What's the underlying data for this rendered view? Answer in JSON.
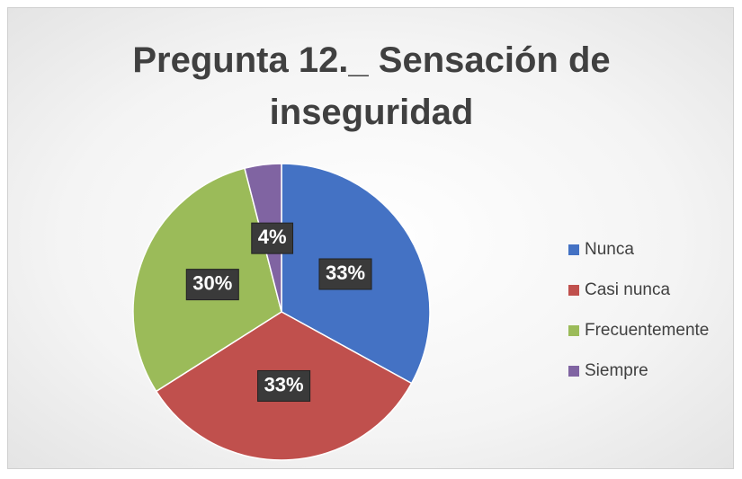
{
  "chart_data": {
    "type": "pie",
    "title": "Pregunta 12._ Sensación de inseguridad",
    "categories": [
      "Nunca",
      "Casi nunca",
      "Frecuentemente",
      "Siempre"
    ],
    "values": [
      33,
      33,
      30,
      4
    ],
    "value_labels": [
      "33%",
      "33%",
      "30%",
      "4%"
    ],
    "colors": [
      "#4472c4",
      "#c0504d",
      "#9bbb59",
      "#8064a2"
    ],
    "legend": "right"
  }
}
